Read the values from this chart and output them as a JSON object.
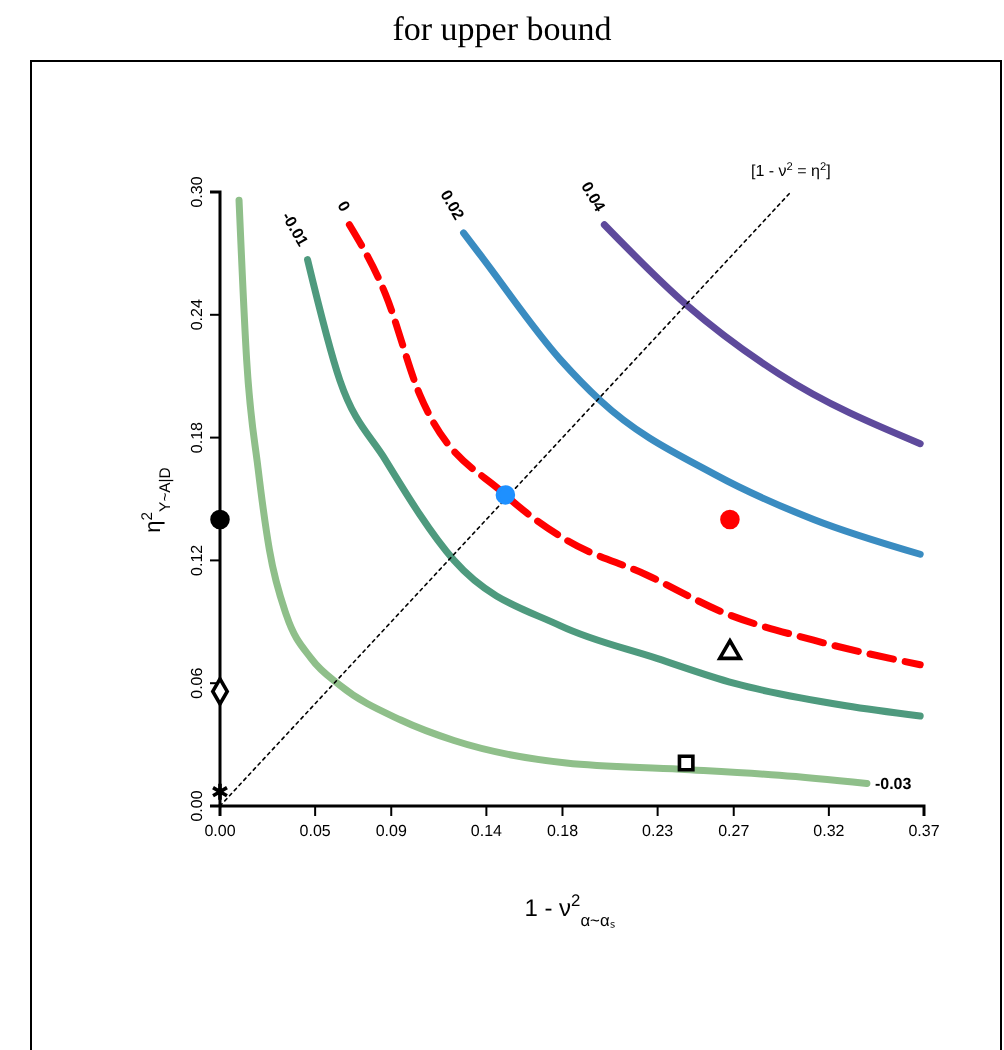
{
  "chart_data": {
    "type": "line",
    "title": "for upper bound",
    "xlabel": "1 - ν$^{2}$$_{α~αₛ}$",
    "ylabel": "η$^{2}$$_{Y~A|D}$",
    "xlim": [
      0,
      0.37
    ],
    "xticks": [
      {
        "value": 0,
        "label": "0.00"
      },
      0.05,
      0.09,
      0.14,
      0.18,
      0.23,
      0.27,
      0.32,
      0.37
    ],
    "ylim": [
      0,
      0.3
    ],
    "yticks": [
      {
        "value": 0,
        "label": "0.00"
      },
      0.06,
      0.12,
      0.18,
      0.24,
      {
        "value": 0.3,
        "label": "0.30"
      }
    ],
    "annotations": [
      {
        "text": "[1 - ν$^{2}$ = η$^{2}$]",
        "x": 0.3,
        "y": 0.3
      }
    ],
    "series": [
      {
        "name": "-0.03",
        "color": "#8fbf8a",
        "marker": "none",
        "line_style": "solid",
        "x": [
          0.01,
          0.014,
          0.02,
          0.026,
          0.035,
          0.048,
          0.063,
          0.095,
          0.123,
          0.182,
          0.242,
          0.294,
          0.34
        ],
        "values": [
          0.296,
          0.218,
          0.165,
          0.125,
          0.093,
          0.072,
          0.059,
          0.042,
          0.032,
          0.021,
          0.018,
          0.015,
          0.011
        ]
      },
      {
        "name": "-0.01",
        "color": "#4e9a7e",
        "marker": "none",
        "line_style": "solid",
        "x": [
          0.046,
          0.063,
          0.087,
          0.123,
          0.179,
          0.23,
          0.27,
          0.329,
          0.368
        ],
        "values": [
          0.267,
          0.208,
          0.169,
          0.12,
          0.088,
          0.072,
          0.06,
          0.049,
          0.044
        ]
      },
      {
        "name": "0",
        "color": "#ff0000",
        "marker": "none",
        "line_style": "dashed",
        "x": [
          0.068,
          0.087,
          0.105,
          0.15,
          0.182,
          0.224,
          0.266,
          0.312,
          0.368
        ],
        "values": [
          0.284,
          0.25,
          0.201,
          0.152,
          0.13,
          0.113,
          0.094,
          0.081,
          0.069
        ]
      },
      {
        "name": "0.02",
        "color": "#3a8cc1",
        "marker": "none",
        "line_style": "solid",
        "x": [
          0.128,
          0.137,
          0.179,
          0.2,
          0.26,
          0.312,
          0.368
        ],
        "values": [
          0.28,
          0.269,
          0.218,
          0.198,
          0.162,
          0.14,
          0.123
        ]
      },
      {
        "name": "0.04",
        "color": "#5e4a9c",
        "marker": "none",
        "line_style": "solid",
        "x": [
          0.202,
          0.245,
          0.294,
          0.368
        ],
        "values": [
          0.284,
          0.245,
          0.211,
          0.177
        ]
      },
      {
        "color": "#000000",
        "marker": "none",
        "line_style": "dotted",
        "x": [
          0,
          0.3
        ],
        "values": [
          0,
          0.3
        ]
      },
      {
        "type": "scatter",
        "color": "#1e90ff",
        "marker": "circle",
        "x": [
          0.15
        ],
        "values": [
          0.152
        ]
      },
      {
        "type": "scatter",
        "color": "#ff0000",
        "marker": "circle",
        "x": [
          0.268
        ],
        "values": [
          0.14
        ]
      },
      {
        "type": "scatter",
        "color": "#000000",
        "marker": "triangle",
        "x": [
          0.268
        ],
        "values": [
          0.075
        ]
      },
      {
        "type": "scatter",
        "color": "#000000",
        "marker": "square",
        "x": [
          0.245
        ],
        "values": [
          0.021
        ]
      },
      {
        "type": "scatter",
        "color": "#000000",
        "marker": "circle",
        "x": [
          0
        ],
        "values": [
          0.14
        ]
      },
      {
        "type": "scatter",
        "color": "#000000",
        "marker": "diamond",
        "x": [
          0
        ],
        "values": [
          0.056
        ]
      },
      {
        "type": "scatter",
        "color": "#000000",
        "marker": "cross",
        "x": [
          0
        ],
        "values": [
          0.007
        ]
      }
    ]
  }
}
